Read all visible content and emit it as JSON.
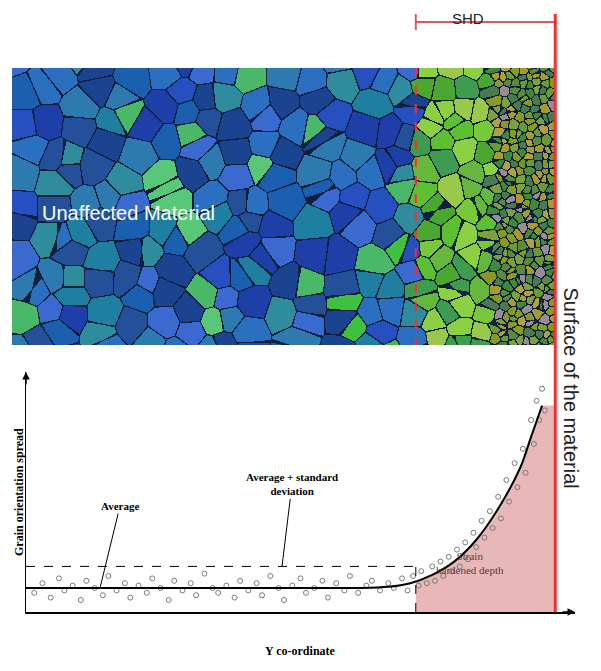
{
  "header": {
    "bracket_label": "SHD",
    "surface_label": "Surface of the material"
  },
  "micrograph": {
    "label": "Unaffected Material"
  },
  "chart_data": {
    "type": "scatter",
    "x_label": "Y co-ordinate",
    "y_label": "Grain orientation spread",
    "xlim": [
      0,
      100
    ],
    "ylim": [
      0,
      100
    ],
    "xticks": [],
    "yticks": [],
    "tick_labels": false,
    "grid": false,
    "points": {
      "type": "scatter",
      "marker": "circle-open",
      "color": "#7a7a7a",
      "x": [
        1.5,
        3,
        4.5,
        6,
        7,
        8.5,
        10,
        11,
        12.5,
        14,
        15,
        16.5,
        18,
        19,
        20.5,
        22,
        23,
        24.5,
        26,
        27,
        28.5,
        30,
        31,
        32.5,
        34,
        35,
        36.5,
        38,
        39,
        40.5,
        42,
        43,
        44.5,
        46,
        47,
        48.5,
        50,
        51,
        52.5,
        54,
        55,
        56.5,
        58,
        59,
        60.5,
        62,
        63,
        64.5,
        66,
        67,
        68.5,
        69.5,
        70.5,
        71.5,
        72,
        73,
        74,
        74.5,
        75.5,
        76,
        77,
        77.5,
        78.5,
        79,
        80,
        80.5,
        81.5,
        82,
        83,
        83.5,
        84.5,
        85,
        86,
        86.5,
        87.5,
        88,
        89,
        89.5,
        90.5,
        91,
        92,
        92.5,
        93,
        93.5,
        94,
        94.5
      ],
      "values": [
        8,
        12,
        6,
        14,
        9,
        11,
        5,
        13,
        10,
        7,
        15,
        9,
        12,
        6,
        11,
        8,
        14,
        10,
        5,
        13,
        9,
        12,
        7,
        16,
        10,
        8,
        11,
        6,
        13,
        9,
        12,
        7,
        15,
        10,
        5,
        11,
        14,
        8,
        10,
        13,
        6,
        12,
        9,
        15,
        8,
        11,
        13,
        9,
        12,
        10,
        14,
        9,
        15,
        11,
        17,
        12,
        19,
        13,
        21,
        15,
        23,
        17,
        26,
        19,
        29,
        22,
        33,
        27,
        38,
        31,
        42,
        35,
        48,
        39,
        55,
        46,
        62,
        52,
        68,
        58,
        80,
        70,
        88,
        80,
        93,
        84
      ]
    },
    "fit": {
      "type": "line",
      "color": "#000000",
      "line_style": "solid",
      "x": [
        0,
        10,
        20,
        30,
        40,
        50,
        60,
        66,
        70,
        74,
        78,
        82,
        86,
        90,
        92,
        94
      ],
      "values": [
        10,
        10,
        10,
        10,
        10,
        10,
        10,
        10.5,
        12,
        15.5,
        21,
        30,
        43,
        60,
        73,
        86
      ]
    },
    "average": {
      "text": "Average",
      "value": 10
    },
    "average_plus_std": {
      "text": "Average + standard deviation",
      "value": 19,
      "line_style": "dash",
      "color": "#000000"
    },
    "strain_hardened_depth": {
      "text": "Strain hardened depth",
      "color": "#e8b8b8",
      "x": [
        71,
        74,
        78,
        82,
        86,
        90,
        92,
        94,
        96.4
      ],
      "values": [
        12.7,
        15.5,
        21,
        30,
        43,
        60,
        73,
        86,
        86
      ]
    },
    "surface_x": 96.4,
    "surface_color": "#ff2a2a"
  }
}
